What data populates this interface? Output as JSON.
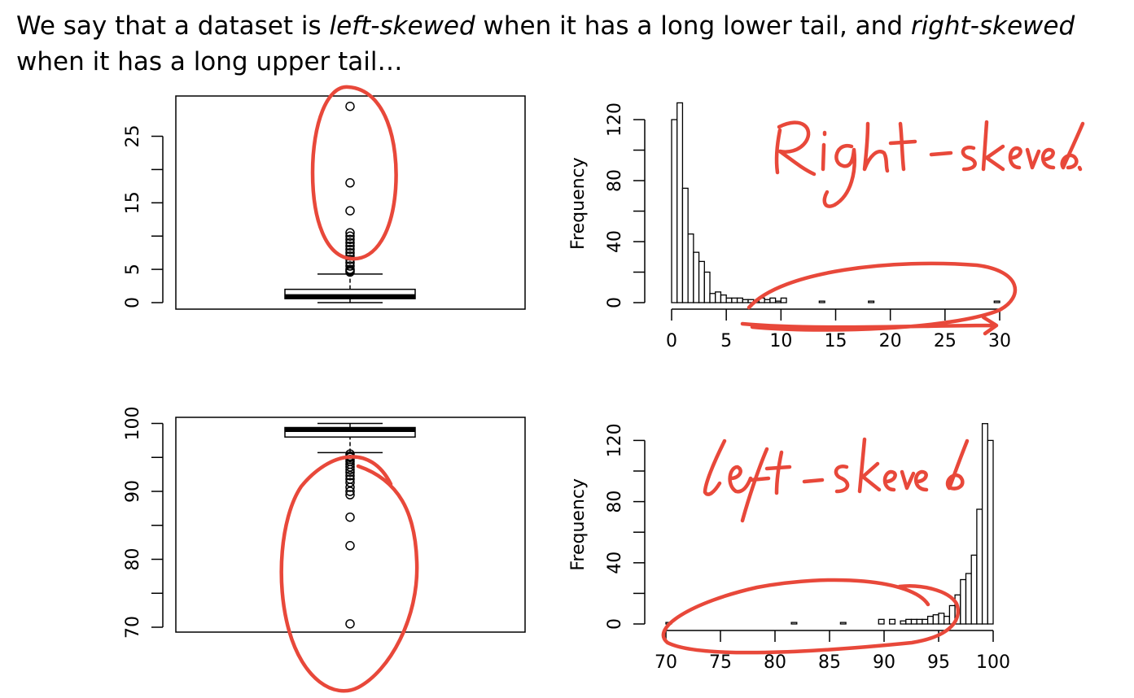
{
  "slide": {
    "line1": {
      "t1": "We say that a dataset is ",
      "t2": "left-skewed",
      "t3": " when it has a long lower tail, and ",
      "t4": "right-skewed"
    },
    "line2": "when it has a long upper tail…"
  },
  "annotations": {
    "right_skewed": "Right-skewed!",
    "left_skewed": "left-skewed"
  },
  "colors": {
    "ink": "#e8483a",
    "axis": "#000000",
    "background": "#ffffff"
  },
  "chart_data": [
    {
      "type": "box",
      "ylim": [
        0,
        30
      ],
      "yticks": [
        0,
        5,
        10,
        15,
        20,
        25
      ],
      "ytick_labels": [
        "0",
        "5",
        "",
        "15",
        "",
        "25"
      ],
      "min": 0,
      "q1": 0.6,
      "median": 0.9,
      "q3": 2.0,
      "whisker_high": 4.3,
      "outliers": [
        29.5,
        18.0,
        13.8,
        10.5,
        10.0,
        9.5,
        9.0,
        8.5,
        8.0,
        7.5,
        7.0,
        6.5,
        6.0,
        5.5,
        5.0,
        4.8,
        4.6
      ]
    },
    {
      "type": "bar",
      "ylabel": "Frequency",
      "xlim": [
        0,
        30
      ],
      "ylim": [
        0,
        130
      ],
      "xticks": [
        0,
        5,
        10,
        15,
        20,
        25,
        30
      ],
      "yticks": [
        0,
        20,
        40,
        60,
        80,
        100,
        120
      ],
      "ytick_labels": [
        "0",
        "",
        "40",
        "",
        "80",
        "",
        "120"
      ],
      "bin_width": 0.5,
      "bin_starts": [
        0,
        0.5,
        1,
        1.5,
        2,
        2.5,
        3,
        3.5,
        4,
        4.5,
        5,
        5.5,
        6,
        6.5,
        7,
        7.5,
        8,
        8.5,
        9,
        9.5,
        10,
        13.5,
        18,
        29.5
      ],
      "values": [
        120,
        131,
        75,
        45,
        33,
        27,
        20,
        6,
        7,
        5,
        3,
        3,
        3,
        2,
        2,
        1,
        3,
        2,
        3,
        1,
        3,
        1,
        1,
        1
      ]
    },
    {
      "type": "box",
      "ylim": [
        70,
        100
      ],
      "yticks": [
        70,
        75,
        80,
        85,
        90,
        95,
        100
      ],
      "ytick_labels": [
        "70",
        "",
        "80",
        "",
        "90",
        "",
        "100"
      ],
      "whisker_low": 95.7,
      "q1": 98.0,
      "median": 99.1,
      "q3": 99.4,
      "max": 100,
      "outliers": [
        95.5,
        95.2,
        95.0,
        94.7,
        94.4,
        94.0,
        93.6,
        93.2,
        92.8,
        92.3,
        91.8,
        91.3,
        90.6,
        90.0,
        89.5,
        86.2,
        82.0,
        70.5
      ]
    },
    {
      "type": "bar",
      "ylabel": "Frequency",
      "xlim": [
        70,
        100
      ],
      "ylim": [
        0,
        130
      ],
      "xticks": [
        70,
        75,
        80,
        85,
        90,
        95,
        100
      ],
      "yticks": [
        0,
        20,
        40,
        60,
        80,
        100,
        120
      ],
      "ytick_labels": [
        "0",
        "",
        "40",
        "",
        "80",
        "",
        "120"
      ],
      "bin_width": 0.5,
      "bin_starts": [
        70,
        81.5,
        86,
        89.5,
        90.5,
        91.5,
        92,
        92.5,
        93,
        93.5,
        94,
        94.5,
        95,
        95.5,
        96,
        96.5,
        97,
        97.5,
        98,
        98.5,
        99,
        99.5
      ],
      "values": [
        1,
        1,
        1,
        3,
        3,
        2,
        3,
        3,
        3,
        3,
        5,
        6,
        7,
        5,
        12,
        19,
        29,
        33,
        45,
        75,
        131,
        120
      ]
    }
  ]
}
